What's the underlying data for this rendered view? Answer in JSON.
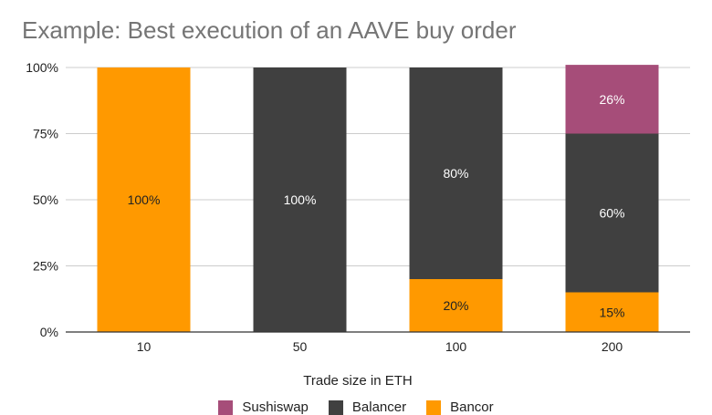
{
  "chart_data": {
    "type": "bar",
    "stacked": true,
    "title": "Example: Best execution of an AAVE buy order",
    "xlabel": "Trade size in ETH",
    "ylabel": "",
    "categories": [
      "10",
      "50",
      "100",
      "200"
    ],
    "ylim": [
      0,
      100
    ],
    "yticks": [
      "0%",
      "25%",
      "50%",
      "75%",
      "100%"
    ],
    "grid": true,
    "legend_position": "bottom",
    "series": [
      {
        "name": "Bancor",
        "color": "#FF9900",
        "values": [
          100,
          0,
          20,
          15
        ],
        "labels": [
          "100%",
          "",
          "20%",
          "15%"
        ]
      },
      {
        "name": "Balancer",
        "color": "#404040",
        "values": [
          0,
          100,
          80,
          60
        ],
        "labels": [
          "",
          "100%",
          "80%",
          "60%"
        ]
      },
      {
        "name": "Sushiswap",
        "color": "#A64D79",
        "values": [
          0,
          0,
          0,
          26
        ],
        "labels": [
          "",
          "",
          "",
          "26%"
        ]
      }
    ],
    "legend": [
      "Sushiswap",
      "Balancer",
      "Bancor"
    ]
  }
}
